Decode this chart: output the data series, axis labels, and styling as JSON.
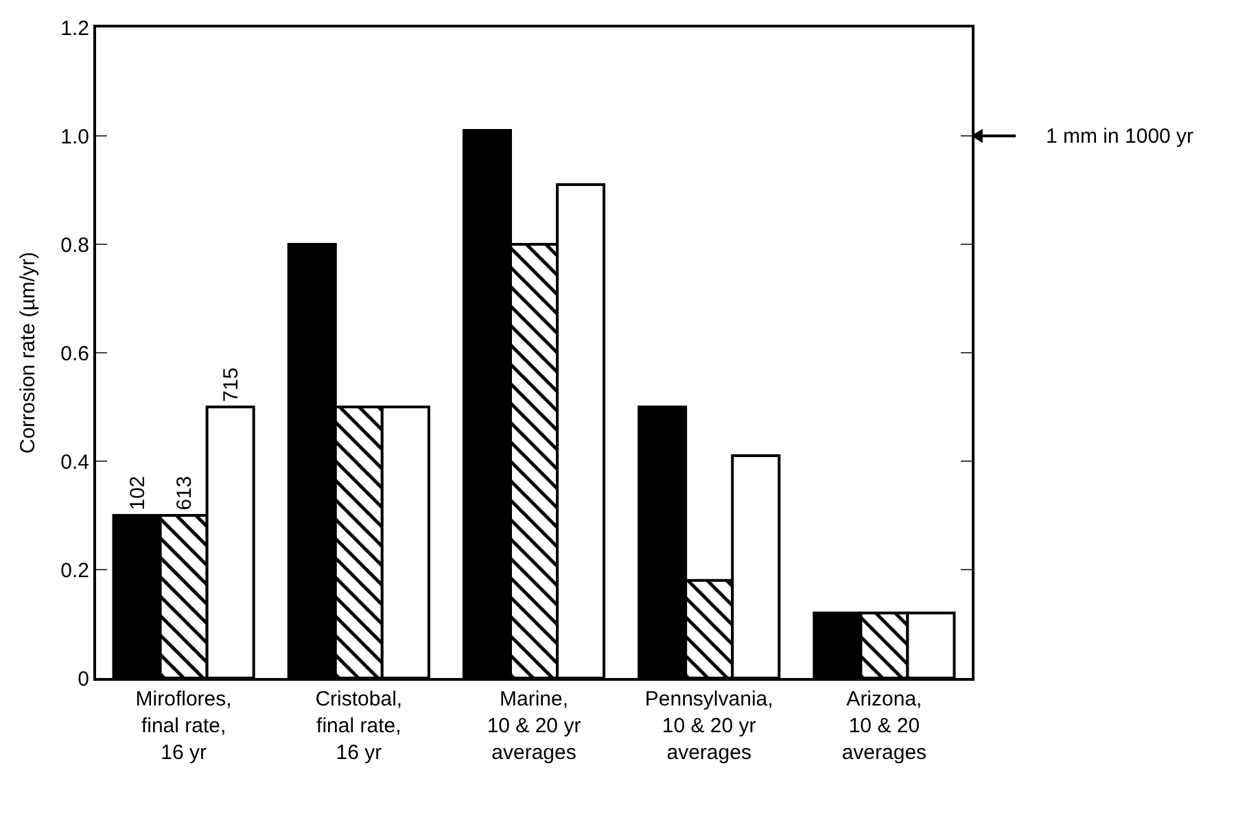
{
  "chart_data": {
    "type": "bar",
    "ylabel": "Corrosion rate (µm/yr)",
    "categories": [
      "Miroflores,\nfinal rate,\n16 yr",
      "Cristobal,\nfinal rate,\n16 yr",
      "Marine,\n10 & 20 yr\naverages",
      "Pennsylvania,\n10 & 20 yr\naverages",
      "Arizona,\n10 & 20\naverages"
    ],
    "series": [
      {
        "name": "102",
        "color": "#000000",
        "values": [
          0.3,
          0.8,
          1.01,
          0.5,
          0.12
        ]
      },
      {
        "name": "613",
        "color": "#000000",
        "values": [
          0.3,
          0.5,
          0.8,
          0.18,
          0.12
        ]
      },
      {
        "name": "715",
        "color": "#ffffff",
        "values": [
          0.5,
          0.5,
          0.91,
          0.41,
          0.12
        ]
      }
    ],
    "ylim": [
      0,
      1.2
    ],
    "yticks": [
      0,
      0.2,
      0.4,
      0.6,
      0.8,
      {
        "value": 1.0,
        "label": "1.0"
      },
      1.2
    ],
    "ref_lines": [
      {
        "axis": "y",
        "value": 1.0,
        "label": "1 mm in 1000 yr"
      }
    ],
    "legend": false
  }
}
